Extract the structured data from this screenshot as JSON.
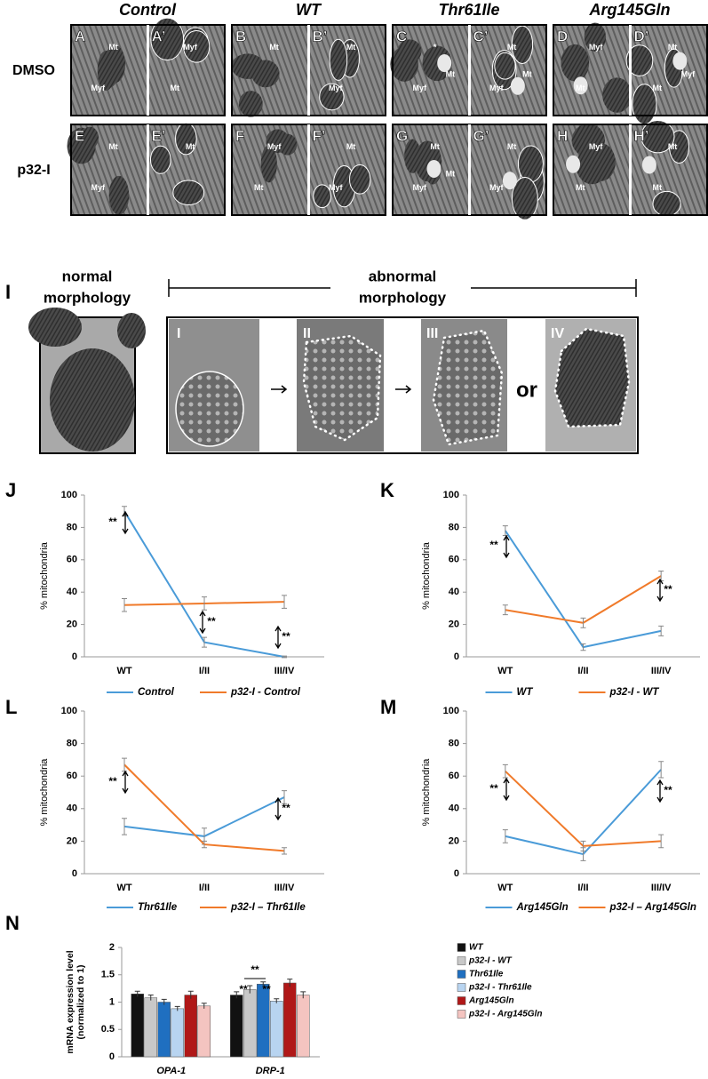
{
  "figure": {
    "columns": [
      "Control",
      "WT",
      "Thr61Ile",
      "Arg145Gln"
    ],
    "rows": [
      "DMSO",
      "p32-I"
    ],
    "panels": [
      {
        "label": "A",
        "marks": [
          "Mt",
          "Myf"
        ]
      },
      {
        "label": "A’",
        "marks": [
          "Myf",
          "Mt"
        ]
      },
      {
        "label": "B",
        "marks": [
          "Mt"
        ]
      },
      {
        "label": "B’",
        "marks": [
          "Mt",
          "Myf"
        ]
      },
      {
        "label": "C",
        "marks": [
          "*",
          "Myf",
          "Mt"
        ]
      },
      {
        "label": "C’",
        "marks": [
          "Mt",
          "Myf",
          "Mt"
        ]
      },
      {
        "label": "D",
        "marks": [
          "Myf",
          "Mt"
        ]
      },
      {
        "label": "D’",
        "marks": [
          "Mt",
          "Mt",
          "Myf"
        ]
      },
      {
        "label": "E",
        "marks": [
          "Mt",
          "Myf"
        ]
      },
      {
        "label": "E’",
        "marks": [
          "Mt"
        ]
      },
      {
        "label": "F",
        "marks": [
          "Myf",
          "Mt"
        ]
      },
      {
        "label": "F’",
        "marks": [
          "Mt",
          "Myf"
        ]
      },
      {
        "label": "G",
        "marks": [
          "Mt",
          "Myf",
          "Mt"
        ]
      },
      {
        "label": "G’",
        "marks": [
          "Mt",
          "Myf"
        ]
      },
      {
        "label": "H",
        "marks": [
          "Myf",
          "Mt"
        ]
      },
      {
        "label": "H’",
        "marks": [
          "Mt",
          "Mt"
        ]
      }
    ]
  },
  "morphology": {
    "panel": "I",
    "normal": [
      "normal",
      "morphology"
    ],
    "abnormal": [
      "abnormal",
      "morphology"
    ],
    "stages": [
      "I",
      "II",
      "III",
      "IV"
    ],
    "connector": "or"
  },
  "chart_data": [
    {
      "panel": "J",
      "type": "line",
      "ylabel": "% mitochondria",
      "categories": [
        "WT",
        "I/II",
        "III/IV"
      ],
      "ylim": [
        0,
        100
      ],
      "yticks": [
        0,
        20,
        40,
        60,
        80,
        100
      ],
      "series": [
        {
          "name": "Control",
          "color": "#4a9bd8",
          "values": [
            90,
            9,
            0
          ],
          "errors": [
            3,
            3,
            0.5
          ]
        },
        {
          "name": "p32-I - Control",
          "color": "#f07a2a",
          "values": [
            32,
            33,
            34
          ],
          "errors": [
            4,
            4,
            4
          ]
        }
      ],
      "annotations": [
        "**",
        "**",
        "**"
      ]
    },
    {
      "panel": "K",
      "type": "line",
      "ylabel": "% mitochondria",
      "categories": [
        "WT",
        "I/II",
        "III/IV"
      ],
      "ylim": [
        0,
        100
      ],
      "yticks": [
        0,
        20,
        40,
        60,
        80,
        100
      ],
      "series": [
        {
          "name": "WT",
          "color": "#4a9bd8",
          "values": [
            78,
            6,
            16
          ],
          "errors": [
            3,
            2,
            3
          ]
        },
        {
          "name": "p32-I - WT",
          "color": "#f07a2a",
          "values": [
            29,
            21,
            50
          ],
          "errors": [
            3,
            3,
            3
          ]
        }
      ],
      "annotations": [
        "**",
        "**"
      ]
    },
    {
      "panel": "L",
      "type": "line",
      "ylabel": "% mitochondria",
      "categories": [
        "WT",
        "I/II",
        "III/IV"
      ],
      "ylim": [
        0,
        100
      ],
      "yticks": [
        0,
        20,
        40,
        60,
        80,
        100
      ],
      "series": [
        {
          "name": "Thr61Ile",
          "color": "#4a9bd8",
          "values": [
            29,
            23,
            47
          ],
          "errors": [
            5,
            5,
            4
          ]
        },
        {
          "name": "p32-I – Thr61Ile",
          "color": "#f07a2a",
          "values": [
            67,
            18,
            14
          ],
          "errors": [
            4,
            2,
            2
          ]
        }
      ],
      "annotations": [
        "**",
        "**"
      ]
    },
    {
      "panel": "M",
      "type": "line",
      "ylabel": "% mitochondria",
      "categories": [
        "WT",
        "I/II",
        "III/IV"
      ],
      "ylim": [
        0,
        100
      ],
      "yticks": [
        0,
        20,
        40,
        60,
        80,
        100
      ],
      "series": [
        {
          "name": "Arg145Gln",
          "color": "#4a9bd8",
          "values": [
            23,
            12,
            64
          ],
          "errors": [
            4,
            4,
            5
          ]
        },
        {
          "name": "p32-I – Arg145Gln",
          "color": "#f07a2a",
          "values": [
            63,
            17,
            20
          ],
          "errors": [
            4,
            3,
            4
          ]
        }
      ],
      "annotations": [
        "**",
        "**"
      ]
    },
    {
      "panel": "N",
      "type": "bar",
      "ylabel": [
        "mRNA expression level",
        "(normalized to 1)"
      ],
      "categories": [
        "OPA-1",
        "DRP-1"
      ],
      "ylim": [
        0,
        2
      ],
      "yticks": [
        0,
        0.5,
        1,
        1.5,
        2
      ],
      "series": [
        {
          "name": "WT",
          "color": "#111111",
          "values": [
            1.15,
            1.13
          ],
          "errors": [
            0.05,
            0.06
          ]
        },
        {
          "name": "p32-I - WT",
          "color": "#c8c8c8",
          "values": [
            1.08,
            1.23
          ],
          "errors": [
            0.05,
            0.07
          ]
        },
        {
          "name": "Thr61Ile",
          "color": "#1f6fc0",
          "values": [
            1.0,
            1.33
          ],
          "errors": [
            0.05,
            0.04
          ]
        },
        {
          "name": "p32-I - Thr61Ile",
          "color": "#b8d4f0",
          "values": [
            0.88,
            1.02
          ],
          "errors": [
            0.04,
            0.04
          ]
        },
        {
          "name": "Arg145Gln",
          "color": "#b01818",
          "values": [
            1.13,
            1.35
          ],
          "errors": [
            0.07,
            0.07
          ]
        },
        {
          "name": "p32-I - Arg145Gln",
          "color": "#f4c4c0",
          "values": [
            0.93,
            1.13
          ],
          "errors": [
            0.05,
            0.06
          ]
        }
      ],
      "annotations": [
        "**",
        "**",
        "**"
      ]
    }
  ]
}
